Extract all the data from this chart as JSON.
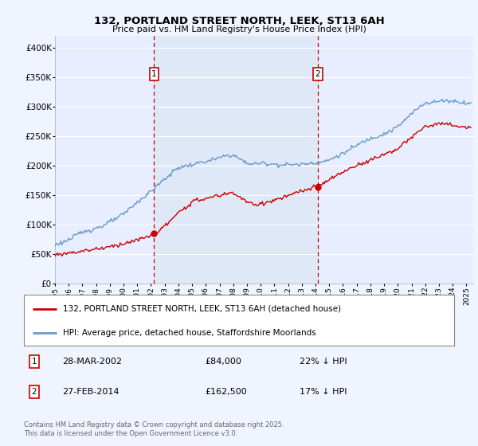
{
  "title": "132, PORTLAND STREET NORTH, LEEK, ST13 6AH",
  "subtitle": "Price paid vs. HM Land Registry's House Price Index (HPI)",
  "ylabel_ticks": [
    "£0",
    "£50K",
    "£100K",
    "£150K",
    "£200K",
    "£250K",
    "£300K",
    "£350K",
    "£400K"
  ],
  "ytick_values": [
    0,
    50000,
    100000,
    150000,
    200000,
    250000,
    300000,
    350000,
    400000
  ],
  "ylim": [
    0,
    420000
  ],
  "xlim_start": 1995.0,
  "xlim_end": 2025.5,
  "marker1_x": 2002.23,
  "marker1_label": "1",
  "marker1_date": "28-MAR-2002",
  "marker1_price": "£84,000",
  "marker1_hpi": "22% ↓ HPI",
  "marker1_y_red": 84000,
  "marker2_x": 2014.15,
  "marker2_label": "2",
  "marker2_date": "27-FEB-2014",
  "marker2_price": "£162,500",
  "marker2_hpi": "17% ↓ HPI",
  "marker2_y_red": 162500,
  "legend_line1": "132, PORTLAND STREET NORTH, LEEK, ST13 6AH (detached house)",
  "legend_line2": "HPI: Average price, detached house, Staffordshire Moorlands",
  "copyright_text": "Contains HM Land Registry data © Crown copyright and database right 2025.\nThis data is licensed under the Open Government Licence v3.0.",
  "red_color": "#cc0000",
  "blue_color": "#6699cc",
  "shade_color": "#dde8f5",
  "background_color": "#f0f4ff",
  "plot_bg_color": "#e8eeff",
  "grid_color": "#ffffff",
  "title_fontsize": 9.5,
  "subtitle_fontsize": 8.0
}
